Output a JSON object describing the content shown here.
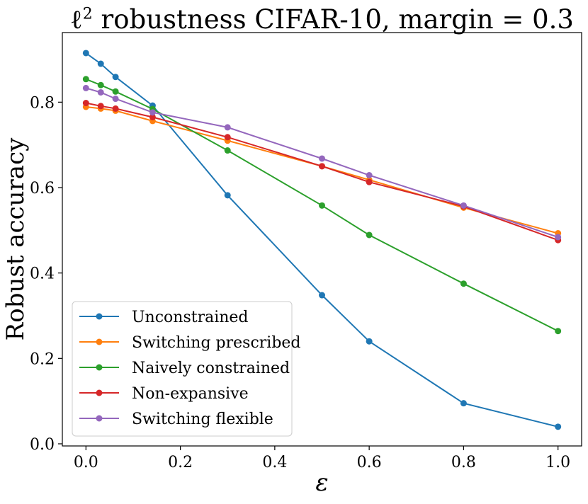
{
  "chart_data": {
    "type": "line",
    "title": "ℓ² robustness CIFAR-10, margin = 0.3",
    "title_main": "ℓ",
    "title_sup": "2",
    "title_rest": " robustness CIFAR-10, margin = 0.3",
    "xlabel": "ε",
    "ylabel": "Robust accuracy",
    "xlim": [
      -0.05,
      1.05
    ],
    "ylim": [
      -0.005,
      0.963
    ],
    "xticks": [
      0.0,
      0.2,
      0.4,
      0.6,
      0.8,
      1.0
    ],
    "xtick_labels": [
      "0.0",
      "0.2",
      "0.4",
      "0.6",
      "0.8",
      "1.0"
    ],
    "yticks": [
      0.0,
      0.2,
      0.4,
      0.6,
      0.8
    ],
    "ytick_labels": [
      "0.0",
      "0.2",
      "0.4",
      "0.6",
      "0.8"
    ],
    "grid": false,
    "legend_position": "lower-left",
    "series": [
      {
        "name": "Unconstrained",
        "color": "#1f77b4",
        "x": [
          0.0,
          0.0314,
          0.0627,
          0.1412,
          0.3,
          0.5,
          0.6,
          0.8,
          1.0
        ],
        "y": [
          0.915,
          0.89,
          0.859,
          0.792,
          0.582,
          0.348,
          0.24,
          0.095,
          0.04
        ]
      },
      {
        "name": "Switching prescribed",
        "color": "#ff7f0e",
        "x": [
          0.0,
          0.0314,
          0.0627,
          0.1412,
          0.3,
          0.5,
          0.6,
          0.8,
          1.0
        ],
        "y": [
          0.789,
          0.785,
          0.78,
          0.756,
          0.71,
          0.65,
          0.618,
          0.553,
          0.493
        ]
      },
      {
        "name": "Naively constrained",
        "color": "#2ca02c",
        "x": [
          0.0,
          0.0314,
          0.0627,
          0.1412,
          0.3,
          0.5,
          0.6,
          0.8,
          1.0
        ],
        "y": [
          0.854,
          0.84,
          0.825,
          0.784,
          0.687,
          0.558,
          0.489,
          0.375,
          0.264
        ]
      },
      {
        "name": "Non-expansive",
        "color": "#d62728",
        "x": [
          0.0,
          0.0314,
          0.0627,
          0.1412,
          0.3,
          0.5,
          0.6,
          0.8,
          1.0
        ],
        "y": [
          0.798,
          0.791,
          0.785,
          0.765,
          0.718,
          0.65,
          0.613,
          0.556,
          0.477
        ]
      },
      {
        "name": "Switching flexible",
        "color": "#9467bd",
        "x": [
          0.0,
          0.0314,
          0.0627,
          0.1412,
          0.3,
          0.5,
          0.6,
          0.8,
          1.0
        ],
        "y": [
          0.833,
          0.823,
          0.808,
          0.776,
          0.741,
          0.668,
          0.629,
          0.558,
          0.484
        ]
      }
    ]
  }
}
